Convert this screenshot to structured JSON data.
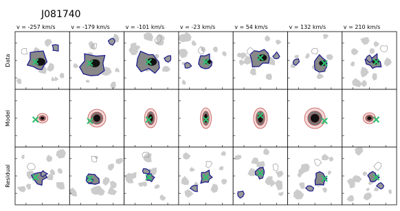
{
  "title": "J081740",
  "columns": [
    "v = -257 km/s",
    "v = -179 km/s",
    "v = -101 km/s",
    "v = -23 km/s",
    "v = 54 km/s",
    "v = 132 km/s",
    "v = 210 km/s"
  ],
  "rows": [
    "Data",
    "Model",
    "Residual"
  ]
}
